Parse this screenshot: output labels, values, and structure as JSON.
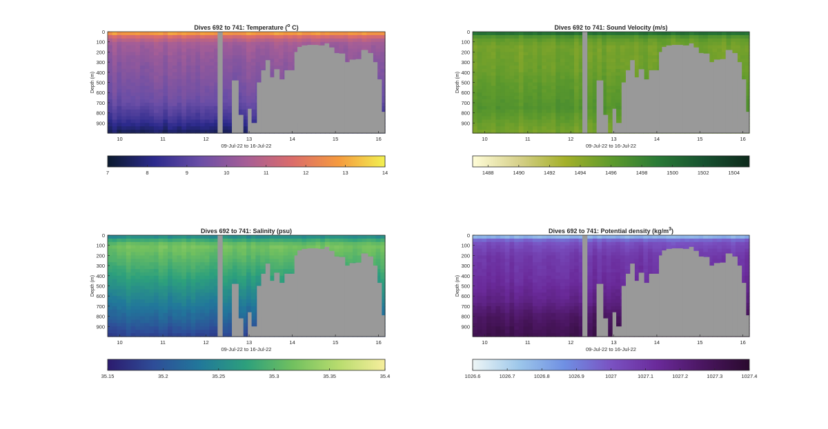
{
  "figure_style": {
    "no_data_color": "#999999",
    "axis_color": "#262626",
    "colorbar_position": "bottom"
  },
  "chart_data": [
    {
      "type": "heatmap",
      "title": "Dives 692 to 741: Temperature (",
      "title_sup": "o",
      "title_suffix": " C)",
      "xlabel": "09-Jul-22 to 16-Jul-22",
      "ylabel": "Depth (m)",
      "xlim": [
        9.72,
        16.15
      ],
      "ylim": [
        0,
        1000
      ],
      "y_reversed": true,
      "x_ticks": [
        10,
        11,
        12,
        13,
        14,
        15,
        16
      ],
      "x_tick_labels": [
        "10",
        "11",
        "12",
        "13",
        "14",
        "15",
        "16"
      ],
      "y_ticks": [
        0,
        100,
        200,
        300,
        400,
        500,
        600,
        700,
        800,
        900
      ],
      "y_tick_labels": [
        "0",
        "100",
        "200",
        "300",
        "400",
        "500",
        "600",
        "700",
        "800",
        "900"
      ],
      "colormap": [
        "#0b1a2e",
        "#2c2a8c",
        "#6a4ea6",
        "#a65e96",
        "#db6c6a",
        "#f59a3e",
        "#f2f051"
      ],
      "clim": [
        7,
        14
      ],
      "colorbar_ticks": [
        7,
        8,
        9,
        10,
        11,
        12,
        13,
        14
      ],
      "colorbar_tick_labels": [
        "7",
        "8",
        "9",
        "10",
        "11",
        "12",
        "13",
        "14"
      ],
      "profile": [
        {
          "depth": 0,
          "value": 13.5
        },
        {
          "depth": 20,
          "value": 12.6
        },
        {
          "depth": 60,
          "value": 11.2
        },
        {
          "depth": 120,
          "value": 10.4
        },
        {
          "depth": 300,
          "value": 10.0
        },
        {
          "depth": 500,
          "value": 9.7
        },
        {
          "depth": 700,
          "value": 9.3
        },
        {
          "depth": 850,
          "value": 8.6
        },
        {
          "depth": 950,
          "value": 7.9
        },
        {
          "depth": 1000,
          "value": 7.5
        }
      ]
    },
    {
      "type": "heatmap",
      "title": "Dives 692 to 741: Sound Velocity (m/s)",
      "xlabel": "09-Jul-22 to 16-Jul-22",
      "ylabel": "Depth (m)",
      "xlim": [
        9.72,
        16.15
      ],
      "ylim": [
        0,
        1000
      ],
      "y_reversed": true,
      "x_ticks": [
        10,
        11,
        12,
        13,
        14,
        15,
        16
      ],
      "x_tick_labels": [
        "10",
        "11",
        "12",
        "13",
        "14",
        "15",
        "16"
      ],
      "y_ticks": [
        0,
        100,
        200,
        300,
        400,
        500,
        600,
        700,
        800,
        900
      ],
      "y_tick_labels": [
        "0",
        "100",
        "200",
        "300",
        "400",
        "500",
        "600",
        "700",
        "800",
        "900"
      ],
      "colormap": [
        "#fffdd8",
        "#d6d08a",
        "#a4b02a",
        "#5e9a2c",
        "#2a7a36",
        "#175230",
        "#0e2a1c"
      ],
      "clim": [
        1487,
        1505
      ],
      "colorbar_ticks": [
        1488,
        1490,
        1492,
        1494,
        1496,
        1498,
        1500,
        1502,
        1504
      ],
      "colorbar_tick_labels": [
        "1488",
        "1490",
        "1492",
        "1494",
        "1496",
        "1498",
        "1500",
        "1502",
        "1504"
      ],
      "profile": [
        {
          "depth": 0,
          "value": 1502.5
        },
        {
          "depth": 20,
          "value": 1499.0
        },
        {
          "depth": 60,
          "value": 1496.0
        },
        {
          "depth": 150,
          "value": 1495.0
        },
        {
          "depth": 350,
          "value": 1495.3
        },
        {
          "depth": 550,
          "value": 1496.0
        },
        {
          "depth": 750,
          "value": 1496.6
        },
        {
          "depth": 900,
          "value": 1495.5
        },
        {
          "depth": 1000,
          "value": 1494.8
        }
      ]
    },
    {
      "type": "heatmap",
      "title": "Dives 692 to 741: Salinity (psu)",
      "xlabel": "09-Jul-22 to 16-Jul-22",
      "ylabel": "Depth (m)",
      "xlim": [
        9.72,
        16.15
      ],
      "ylim": [
        0,
        1000
      ],
      "y_reversed": true,
      "x_ticks": [
        10,
        11,
        12,
        13,
        14,
        15,
        16
      ],
      "x_tick_labels": [
        "10",
        "11",
        "12",
        "13",
        "14",
        "15",
        "16"
      ],
      "y_ticks": [
        0,
        100,
        200,
        300,
        400,
        500,
        600,
        700,
        800,
        900
      ],
      "y_tick_labels": [
        "0",
        "100",
        "200",
        "300",
        "400",
        "500",
        "600",
        "700",
        "800",
        "900"
      ],
      "colormap": [
        "#2c1b6e",
        "#2e4d98",
        "#21789a",
        "#2da07c",
        "#71c05f",
        "#b8dc6e",
        "#f6ee9c"
      ],
      "clim": [
        35.15,
        35.4
      ],
      "colorbar_ticks": [
        35.15,
        35.2,
        35.25,
        35.3,
        35.35,
        35.4
      ],
      "colorbar_tick_labels": [
        "35.15",
        "35.2",
        "35.25",
        "35.3",
        "35.35",
        "35.4"
      ],
      "profile": [
        {
          "depth": 0,
          "value": 35.24
        },
        {
          "depth": 40,
          "value": 35.28
        },
        {
          "depth": 100,
          "value": 35.32
        },
        {
          "depth": 250,
          "value": 35.3
        },
        {
          "depth": 450,
          "value": 35.27
        },
        {
          "depth": 650,
          "value": 35.24
        },
        {
          "depth": 850,
          "value": 35.21
        },
        {
          "depth": 1000,
          "value": 35.18
        }
      ]
    },
    {
      "type": "heatmap",
      "title": "Dives 692 to 741: Potential density (kg/m",
      "title_sup": "3",
      "title_suffix": ")",
      "xlabel": "09-Jul-22 to 16-Jul-22",
      "ylabel": "Depth (m)",
      "xlim": [
        9.72,
        16.15
      ],
      "ylim": [
        0,
        1000
      ],
      "y_reversed": true,
      "x_ticks": [
        10,
        11,
        12,
        13,
        14,
        15,
        16
      ],
      "x_tick_labels": [
        "10",
        "11",
        "12",
        "13",
        "14",
        "15",
        "16"
      ],
      "y_ticks": [
        0,
        100,
        200,
        300,
        400,
        500,
        600,
        700,
        800,
        900
      ],
      "y_tick_labels": [
        "0",
        "100",
        "200",
        "300",
        "400",
        "500",
        "600",
        "700",
        "800",
        "900"
      ],
      "colormap": [
        "#eef6f6",
        "#9dc7ea",
        "#6f8fe3",
        "#7a52c2",
        "#6a2a9a",
        "#4a1660",
        "#2a0a2e"
      ],
      "clim": [
        1026.6,
        1027.4
      ],
      "colorbar_ticks": [
        1026.6,
        1026.7,
        1026.8,
        1026.9,
        1027,
        1027.1,
        1027.2,
        1027.3,
        1027.4
      ],
      "colorbar_tick_labels": [
        "1026.6",
        "1026.7",
        "1026.8",
        "1026.9",
        "1027",
        "1027.1",
        "1027.2",
        "1027.3",
        "1027.4"
      ],
      "profile": [
        {
          "depth": 0,
          "value": 1026.65
        },
        {
          "depth": 25,
          "value": 1026.85
        },
        {
          "depth": 60,
          "value": 1027.0
        },
        {
          "depth": 200,
          "value": 1027.08
        },
        {
          "depth": 450,
          "value": 1027.12
        },
        {
          "depth": 650,
          "value": 1027.18
        },
        {
          "depth": 800,
          "value": 1027.26
        },
        {
          "depth": 1000,
          "value": 1027.32
        }
      ]
    }
  ],
  "no_data_mask": [
    {
      "x_start": 12.27,
      "x_end": 12.38,
      "depth_from": 0
    },
    {
      "x_start": 12.6,
      "x_end": 12.75,
      "depth_from": 480
    },
    {
      "x_start": 12.75,
      "x_end": 12.86,
      "depth_from": 820
    },
    {
      "x_start": 12.86,
      "x_end": 12.97,
      "depth_from": 1000
    },
    {
      "x_start": 12.97,
      "x_end": 13.05,
      "depth_from": 760
    },
    {
      "x_start": 13.05,
      "x_end": 13.18,
      "depth_from": 900
    },
    {
      "x_start": 13.18,
      "x_end": 13.28,
      "depth_from": 500
    },
    {
      "x_start": 13.28,
      "x_end": 13.38,
      "depth_from": 380
    },
    {
      "x_start": 13.38,
      "x_end": 13.48,
      "depth_from": 280
    },
    {
      "x_start": 13.48,
      "x_end": 13.58,
      "depth_from": 450
    },
    {
      "x_start": 13.58,
      "x_end": 13.7,
      "depth_from": 370
    },
    {
      "x_start": 13.7,
      "x_end": 13.82,
      "depth_from": 470
    },
    {
      "x_start": 13.82,
      "x_end": 14.05,
      "depth_from": 380
    },
    {
      "x_start": 14.05,
      "x_end": 14.12,
      "depth_from": 200
    },
    {
      "x_start": 14.12,
      "x_end": 14.22,
      "depth_from": 150
    },
    {
      "x_start": 14.22,
      "x_end": 14.35,
      "depth_from": 135
    },
    {
      "x_start": 14.35,
      "x_end": 14.6,
      "depth_from": 130
    },
    {
      "x_start": 14.6,
      "x_end": 14.75,
      "depth_from": 135
    },
    {
      "x_start": 14.75,
      "x_end": 14.85,
      "depth_from": 115
    },
    {
      "x_start": 14.85,
      "x_end": 14.97,
      "depth_from": 155
    },
    {
      "x_start": 14.97,
      "x_end": 15.08,
      "depth_from": 210
    },
    {
      "x_start": 15.08,
      "x_end": 15.22,
      "depth_from": 215
    },
    {
      "x_start": 15.22,
      "x_end": 15.33,
      "depth_from": 300
    },
    {
      "x_start": 15.33,
      "x_end": 15.47,
      "depth_from": 275
    },
    {
      "x_start": 15.47,
      "x_end": 15.6,
      "depth_from": 270
    },
    {
      "x_start": 15.6,
      "x_end": 15.75,
      "depth_from": 180
    },
    {
      "x_start": 15.75,
      "x_end": 15.87,
      "depth_from": 210
    },
    {
      "x_start": 15.87,
      "x_end": 15.97,
      "depth_from": 300
    },
    {
      "x_start": 15.97,
      "x_end": 16.07,
      "depth_from": 470
    },
    {
      "x_start": 16.07,
      "x_end": 16.15,
      "depth_from": 790
    }
  ]
}
